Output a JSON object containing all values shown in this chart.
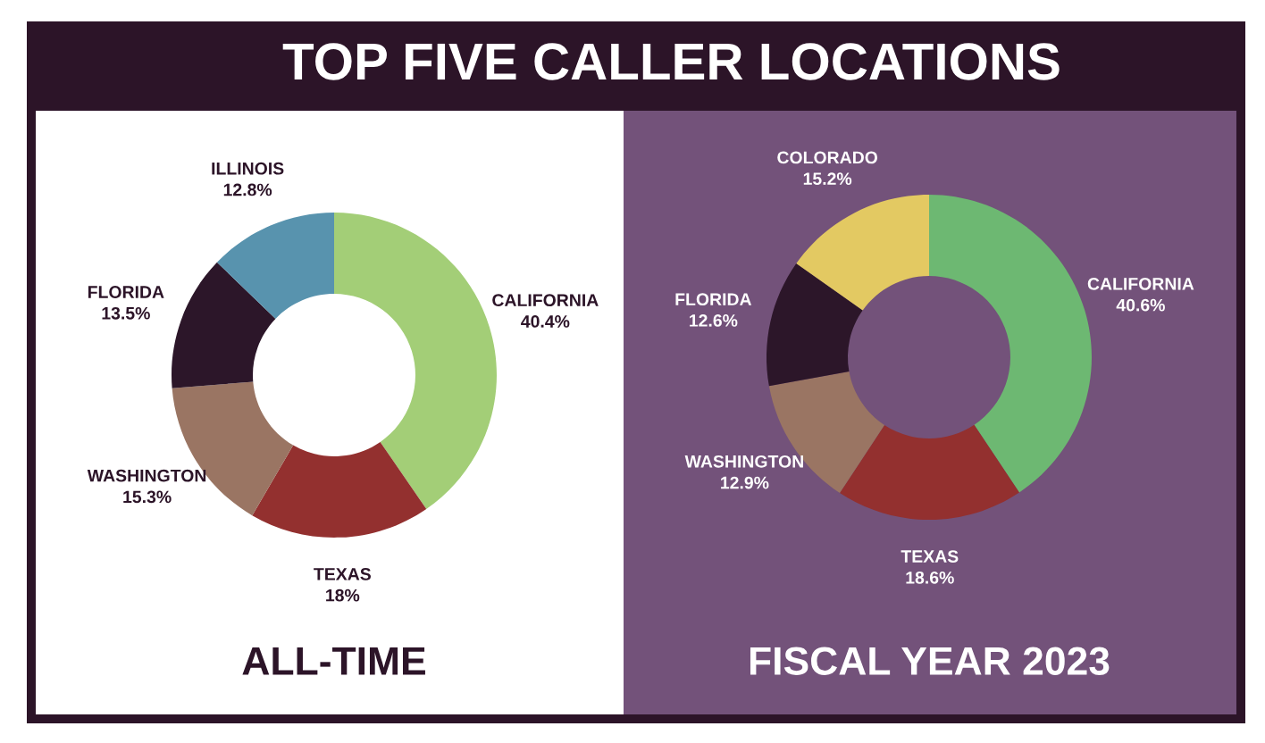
{
  "chart_data": [
    {
      "type": "donut",
      "title": "TOP FIVE CALLER LOCATIONS",
      "subtitle": "ALL-TIME",
      "categories": [
        "CALIFORNIA",
        "TEXAS",
        "WASHINGTON",
        "FLORIDA",
        "ILLINOIS"
      ],
      "values": [
        40.4,
        18,
        15.3,
        13.5,
        12.8
      ],
      "value_labels": [
        "40.4%",
        "18%",
        "15.3%",
        "13.5%",
        "12.8%"
      ],
      "colors": [
        "#a3ce77",
        "#93302f",
        "#9a7563",
        "#2c1629",
        "#5893ae"
      ]
    },
    {
      "type": "donut",
      "subtitle": "FISCAL YEAR 2023",
      "categories": [
        "CALIFORNIA",
        "TEXAS",
        "WASHINGTON",
        "FLORIDA",
        "COLORADO"
      ],
      "values": [
        40.6,
        18.6,
        12.9,
        12.6,
        15.2
      ],
      "value_labels": [
        "40.6%",
        "18.6%",
        "12.9%",
        "12.6%",
        "15.2%"
      ],
      "colors": [
        "#6db872",
        "#93302f",
        "#9a7563",
        "#2c1629",
        "#e3c962"
      ]
    }
  ]
}
